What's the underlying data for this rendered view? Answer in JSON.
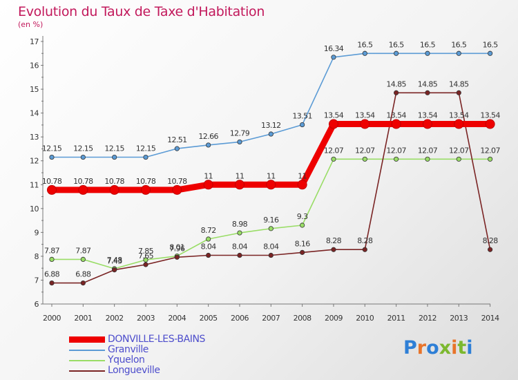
{
  "header": {
    "title": "Evolution du Taux de Taxe d'Habitation",
    "subtitle": "(en %)"
  },
  "logo": {
    "text": "Proxiti",
    "colors": [
      "#2e7fd6",
      "#e8742a",
      "#2e7fd6",
      "#7cb82f",
      "#e8742a",
      "#7cb82f",
      "#2e7fd6"
    ]
  },
  "chart_data": {
    "type": "line",
    "title": "Evolution du Taux de Taxe d'Habitation",
    "ylabel": "(en %)",
    "xlabel": "",
    "x": [
      "2000",
      "2001",
      "2002",
      "2003",
      "2004",
      "2005",
      "2006",
      "2007",
      "2008",
      "2009",
      "2010",
      "2011",
      "2012",
      "2013",
      "2014"
    ],
    "ylim": [
      6,
      17
    ],
    "yticks": [
      "6",
      "7",
      "8",
      "9",
      "10",
      "11",
      "12",
      "13",
      "14",
      "15",
      "16",
      "17"
    ],
    "grid": false,
    "legend": "bottom-left",
    "series": [
      {
        "name": "DONVILLE-LES-BAINS",
        "color": "#ee0000",
        "values": [
          10.78,
          10.78,
          10.78,
          10.78,
          10.78,
          11,
          11,
          11,
          11,
          13.54,
          13.54,
          13.54,
          13.54,
          13.54,
          13.54
        ],
        "labels": [
          "10.78",
          "10.78",
          "10.78",
          "10.78",
          "10.78",
          "11",
          "11",
          "11",
          "11",
          "13.54",
          "13.54",
          "13.54",
          "13.54",
          "13.54",
          "13.54"
        ]
      },
      {
        "name": "Granville",
        "color": "#5b9bd5",
        "values": [
          12.15,
          12.15,
          12.15,
          12.15,
          12.51,
          12.66,
          12.79,
          13.12,
          13.51,
          16.34,
          16.5,
          16.5,
          16.5,
          16.5,
          16.5
        ],
        "labels": [
          "12.15",
          "12.15",
          "12.15",
          "12.15",
          "12.51",
          "12.66",
          "12.79",
          "13.12",
          "13.51",
          "16.34",
          "16.5",
          "16.5",
          "16.5",
          "16.5",
          "16.5"
        ]
      },
      {
        "name": "Yquelon",
        "color": "#99dd66",
        "values": [
          7.87,
          7.87,
          7.48,
          7.85,
          8.01,
          8.72,
          8.98,
          9.16,
          9.3,
          12.07,
          12.07,
          12.07,
          12.07,
          12.07,
          12.07
        ],
        "labels": [
          "7.87",
          "7.87",
          "7.48",
          "7.85",
          "8.01",
          "8.72",
          "8.98",
          "9.16",
          "9.3",
          "12.07",
          "12.07",
          "12.07",
          "12.07",
          "12.07",
          "12.07"
        ]
      },
      {
        "name": "Longueville",
        "color": "#7a2424",
        "values": [
          6.88,
          6.88,
          7.43,
          7.65,
          7.96,
          8.04,
          8.04,
          8.04,
          8.16,
          8.28,
          8.28,
          14.85,
          14.85,
          14.85,
          8.28
        ],
        "labels": [
          "6.88",
          "6.88",
          "7.43",
          "7.65",
          "7.96",
          "8.04",
          "8.04",
          "8.04",
          "8.16",
          "8.28",
          "8.28",
          "14.85",
          "14.85",
          "14.85",
          "8.28"
        ]
      }
    ]
  }
}
